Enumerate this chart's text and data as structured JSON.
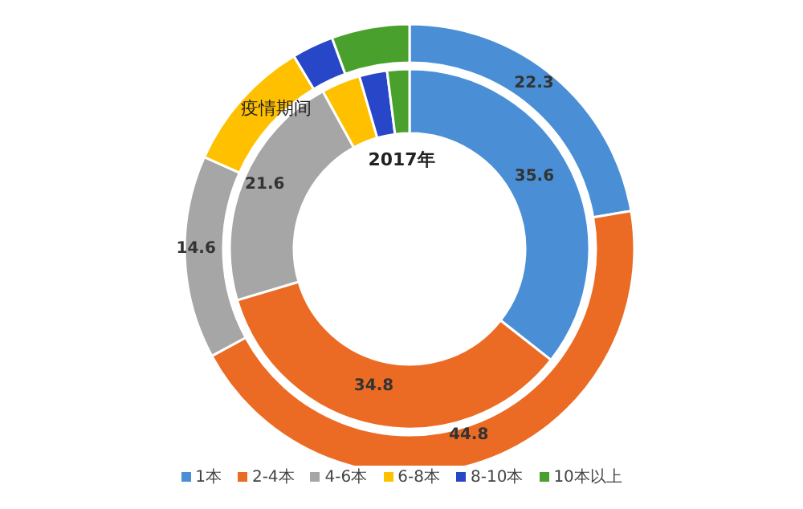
{
  "chart_data": {
    "type": "donut",
    "categories": [
      "1本",
      "2-4本",
      "4-6本",
      "6-8本",
      "8-10本",
      "10本以上"
    ],
    "colors": [
      "#4a8fd6",
      "#ec6b24",
      "#a6a6a6",
      "#ffc000",
      "#2747c8",
      "#4aa02c"
    ],
    "series": [
      {
        "name": "疫情期间",
        "values": [
          22.3,
          44.8,
          14.6,
          9.7,
          3.0,
          5.6
        ],
        "value_labels": [
          "22.3",
          "44.8",
          "14.6",
          null,
          null,
          null
        ]
      },
      {
        "name": "2017年",
        "values": [
          35.6,
          34.8,
          21.6,
          3.5,
          2.5,
          2.0
        ],
        "value_labels": [
          "35.6",
          "34.8",
          "21.6",
          null,
          null,
          null
        ]
      }
    ],
    "legend": "bottom"
  }
}
